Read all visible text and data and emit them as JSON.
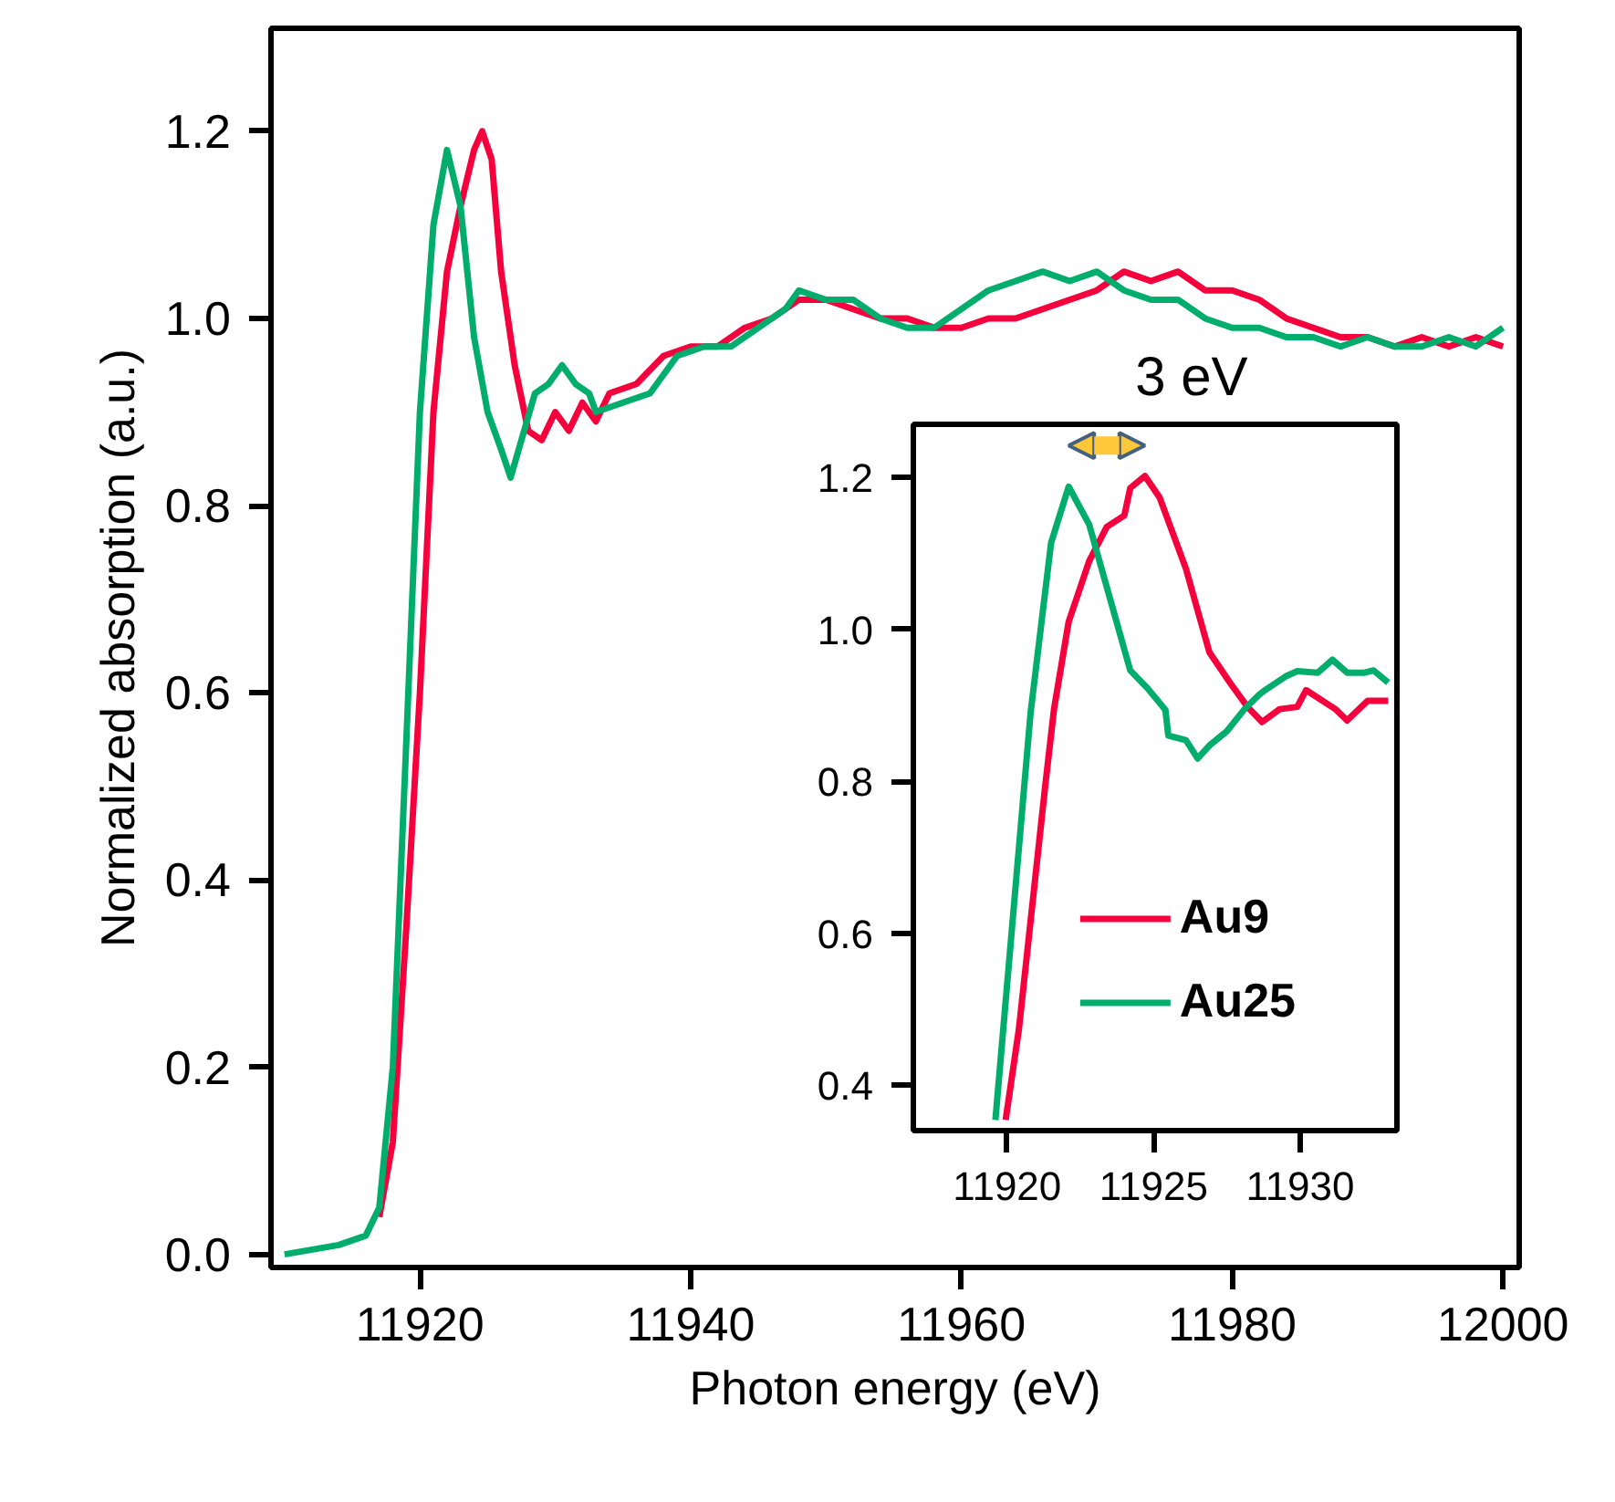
{
  "chart_data": [
    {
      "type": "line",
      "xlabel": "Photon energy (eV)",
      "ylabel": "Normalized absorption (a.u.)",
      "xlim": [
        11909,
        12001.2
      ],
      "ylim": [
        -0.014,
        1.31
      ],
      "xticks": [
        11920,
        11940,
        11960,
        11980,
        12000
      ],
      "yticks": [
        {
          "value": 0,
          "label": "0.0"
        },
        {
          "value": 0.2,
          "label": "0.2"
        },
        {
          "value": 0.4,
          "label": "0.4"
        },
        {
          "value": 0.6,
          "label": "0.6"
        },
        {
          "value": 0.8,
          "label": "0.8"
        },
        {
          "value": 1.0,
          "label": "1.0"
        },
        {
          "value": 1.2,
          "label": "1.2"
        }
      ],
      "grid": false,
      "legend": false,
      "marker": "none",
      "line_style": "solid",
      "series": [
        {
          "color": "#f5003c",
          "x": [
            11917,
            11918,
            11919,
            11920,
            11920.5,
            11921,
            11922,
            11923,
            11924,
            11924.6,
            11925.3,
            11926,
            11927,
            11928,
            11929,
            11930,
            11931,
            11932,
            11933,
            11934,
            11936,
            11938,
            11940,
            11942,
            11944,
            11946,
            11948,
            11950,
            11952,
            11954,
            11956,
            11958,
            11960,
            11962,
            11964,
            11966,
            11968,
            11970,
            11972,
            11974,
            11976,
            11978,
            11980,
            11982,
            11984,
            11986,
            11988,
            11990,
            11992,
            11994,
            11996,
            11998,
            12000
          ],
          "values": [
            0.04,
            0.12,
            0.35,
            0.6,
            0.75,
            0.9,
            1.05,
            1.12,
            1.18,
            1.2,
            1.17,
            1.05,
            0.95,
            0.88,
            0.87,
            0.9,
            0.88,
            0.91,
            0.89,
            0.92,
            0.93,
            0.96,
            0.97,
            0.97,
            0.99,
            1.0,
            1.02,
            1.02,
            1.01,
            1.0,
            1.0,
            0.99,
            0.99,
            1.0,
            1.0,
            1.01,
            1.02,
            1.03,
            1.05,
            1.04,
            1.05,
            1.03,
            1.03,
            1.02,
            1.0,
            0.99,
            0.98,
            0.98,
            0.97,
            0.98,
            0.97,
            0.98,
            0.97
          ]
        },
        {
          "color": "#00ad6c",
          "x": [
            11910,
            11914,
            11916,
            11917,
            11918,
            11919,
            11920,
            11921,
            11922,
            11923,
            11924,
            11925,
            11926,
            11926.7,
            11927.5,
            11928.5,
            11929.5,
            11930.5,
            11931.5,
            11932.5,
            11933,
            11935,
            11937,
            11939,
            11941,
            11943,
            11945,
            11947,
            11948,
            11950,
            11952,
            11954,
            11956,
            11958,
            11960,
            11962,
            11964,
            11966,
            11968,
            11970,
            11972,
            11974,
            11976,
            11978,
            11980,
            11982,
            11984,
            11986,
            11988,
            11990,
            11992,
            11994,
            11996,
            11998,
            12000
          ],
          "values": [
            0.0,
            0.01,
            0.02,
            0.05,
            0.2,
            0.55,
            0.9,
            1.1,
            1.18,
            1.12,
            0.98,
            0.9,
            0.86,
            0.83,
            0.87,
            0.92,
            0.93,
            0.95,
            0.93,
            0.92,
            0.9,
            0.91,
            0.92,
            0.96,
            0.97,
            0.97,
            0.99,
            1.01,
            1.03,
            1.02,
            1.02,
            1.0,
            0.99,
            0.99,
            1.01,
            1.03,
            1.04,
            1.05,
            1.04,
            1.05,
            1.03,
            1.02,
            1.02,
            1.0,
            0.99,
            0.99,
            0.98,
            0.98,
            0.97,
            0.98,
            0.97,
            0.97,
            0.98,
            0.97,
            0.99
          ]
        }
      ]
    },
    {
      "type": "line",
      "xlim": [
        11916.8,
        11933.3
      ],
      "ylim": [
        0.34,
        1.27
      ],
      "xticks": [
        11920,
        11925,
        11930
      ],
      "yticks": [
        {
          "value": 0.4,
          "label": "0.4"
        },
        {
          "value": 0.6,
          "label": "0.6"
        },
        {
          "value": 0.8,
          "label": "0.8"
        },
        {
          "value": 1.0,
          "label": "1.0"
        },
        {
          "value": 1.2,
          "label": "1.2"
        }
      ],
      "grid": false,
      "legend": "bottom right",
      "marker": "none",
      "line_style": "solid",
      "annotations": [
        "3 eV"
      ],
      "series": [
        {
          "name": "Au9",
          "color": "#f5003c",
          "x": [
            11919.95,
            11920.4,
            11921.3,
            11921.6,
            11922.1,
            11922.8,
            11923.4,
            11924.0,
            11924.2,
            11924.7,
            11925.2,
            11926.1,
            11926.9,
            11927.6,
            11928.2,
            11928.7,
            11929.3,
            11929.9,
            11930.2,
            11931.2,
            11931.6,
            11932.3,
            11933.0
          ],
          "values": [
            0.354,
            0.473,
            0.794,
            0.895,
            1.01,
            1.09,
            1.135,
            1.15,
            1.186,
            1.202,
            1.174,
            1.08,
            0.97,
            0.93,
            0.898,
            0.878,
            0.895,
            0.898,
            0.92,
            0.895,
            0.88,
            0.906,
            0.906
          ]
        },
        {
          "name": "Au25",
          "color": "#00ad6c",
          "x": [
            11919.6,
            11920.8,
            11921.5,
            11922.1,
            11922.8,
            11923.5,
            11924.2,
            11924.8,
            11925.4,
            11925.5,
            11926.1,
            11926.5,
            11926.9,
            11927.5,
            11928.1,
            11928.6,
            11928.8,
            11929.5,
            11929.9,
            11930.6,
            11931.1,
            11931.6,
            11932.2,
            11932.5,
            11933.0
          ],
          "values": [
            0.354,
            0.89,
            1.114,
            1.188,
            1.138,
            1.042,
            0.946,
            0.922,
            0.894,
            0.86,
            0.854,
            0.83,
            0.847,
            0.866,
            0.895,
            0.914,
            0.92,
            0.938,
            0.945,
            0.943,
            0.96,
            0.943,
            0.943,
            0.946,
            0.93
          ]
        }
      ]
    }
  ]
}
